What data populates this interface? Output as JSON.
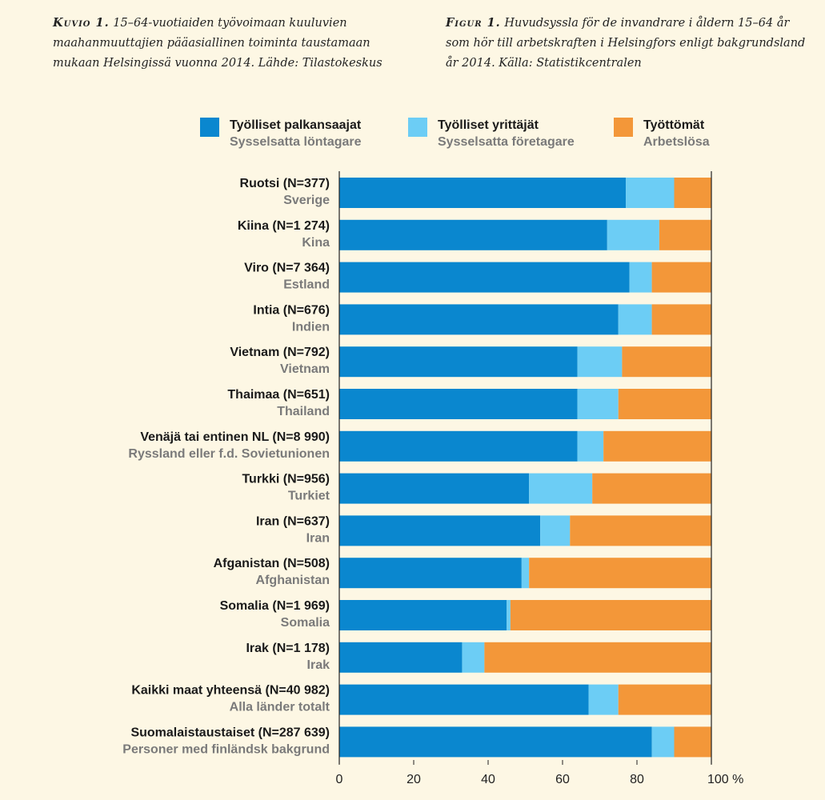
{
  "caption_fi": {
    "label": "Kuvio 1.",
    "text": "15–64-vuotiaiden työvoimaan kuuluvien maahanmuuttajien pääasiallinen toiminta taustamaan mukaan Helsingissä vuonna 2014. Lähde: Tilastokeskus"
  },
  "caption_sv": {
    "label": "Figur 1.",
    "text": "Huvudsyssla för de invandrare i åldern 15–64 år som hör till arbetskraften i Helsingfors enligt bakgrundsland år 2014. Källa: Statistikcentralen"
  },
  "chart_data": {
    "type": "bar",
    "orientation": "horizontal",
    "stacked": true,
    "categories": [
      {
        "fi": "Ruotsi (N=377)",
        "sv": "Sverige"
      },
      {
        "fi": "Kiina (N=1 274)",
        "sv": "Kina"
      },
      {
        "fi": "Viro (N=7 364)",
        "sv": "Estland"
      },
      {
        "fi": "Intia (N=676)",
        "sv": "Indien"
      },
      {
        "fi": "Vietnam (N=792)",
        "sv": "Vietnam"
      },
      {
        "fi": "Thaimaa (N=651)",
        "sv": "Thailand"
      },
      {
        "fi": "Venäjä tai entinen NL (N=8 990)",
        "sv": "Ryssland eller f.d. Sovietunionen"
      },
      {
        "fi": "Turkki (N=956)",
        "sv": "Turkiet"
      },
      {
        "fi": "Iran (N=637)",
        "sv": "Iran"
      },
      {
        "fi": "Afganistan (N=508)",
        "sv": "Afghanistan"
      },
      {
        "fi": "Somalia (N=1 969)",
        "sv": "Somalia"
      },
      {
        "fi": "Irak (N=1 178)",
        "sv": "Irak"
      },
      {
        "fi": "Kaikki maat yhteensä (N=40 982)",
        "sv": "Alla länder totalt"
      },
      {
        "fi": "Suomalaistaustaiset (N=287 639)",
        "sv": "Personer med finländsk bakgrund"
      }
    ],
    "series": [
      {
        "name": "Työlliset palkansaajat",
        "name_sv": "Sysselsatta löntagare",
        "color": "#0a87cf",
        "values": [
          77,
          72,
          78,
          75,
          64,
          64,
          64,
          51,
          54,
          49,
          45,
          33,
          67,
          84
        ]
      },
      {
        "name": "Työlliset yrittäjät",
        "name_sv": "Sysselsatta företagare",
        "color": "#6ccdf5",
        "values": [
          13,
          14,
          6,
          9,
          12,
          11,
          7,
          17,
          8,
          2,
          1,
          6,
          8,
          6
        ]
      },
      {
        "name": "Työttömät",
        "name_sv": "Arbetslösa",
        "color": "#f39739",
        "values": [
          10,
          14,
          16,
          16,
          24,
          25,
          29,
          32,
          38,
          49,
          54,
          61,
          25,
          10
        ]
      }
    ],
    "xticks": [
      "0",
      "20",
      "40",
      "60",
      "80",
      "100 %"
    ],
    "xlim": [
      0,
      100
    ],
    "legend": "top"
  }
}
